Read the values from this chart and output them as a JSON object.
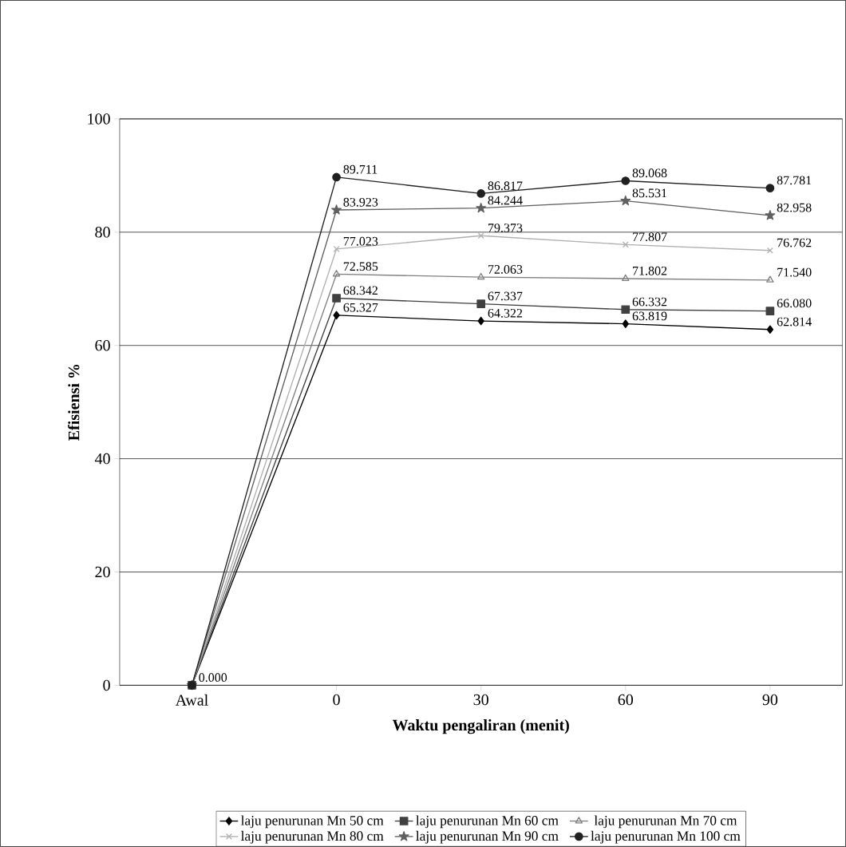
{
  "chart_data": {
    "type": "line",
    "xlabel": "Waktu pengaliran (menit)",
    "ylabel": "Efisiensi %",
    "categories": [
      "Awal",
      "0",
      "30",
      "60",
      "90"
    ],
    "ylim": [
      0,
      100
    ],
    "yticks": [
      0,
      20,
      40,
      60,
      80,
      100
    ],
    "grid": "y",
    "legend": "bottom",
    "series": [
      {
        "name": "laju penurunan Mn 50 cm",
        "color": "#000000",
        "marker": "diamond",
        "values": [
          0,
          65.327,
          64.322,
          63.819,
          62.814
        ],
        "value_labels": [
          null,
          "65.327",
          "64.322",
          "63.819",
          "62.814"
        ]
      },
      {
        "name": "laju penurunan Mn 60 cm",
        "color": "#404040",
        "marker": "square",
        "values": [
          0,
          68.342,
          67.337,
          66.332,
          66.08
        ],
        "value_labels": [
          "0.000",
          "68.342",
          "67.337",
          "66.332",
          "66.080"
        ]
      },
      {
        "name": "laju penurunan Mn 70 cm",
        "color": "#808080",
        "marker": "triangle",
        "values": [
          0,
          72.585,
          72.063,
          71.802,
          71.54
        ],
        "value_labels": [
          null,
          "72.585",
          "72.063",
          "71.802",
          "71.540"
        ]
      },
      {
        "name": "laju penurunan Mn 80 cm",
        "color": "#b0b0b0",
        "marker": "cross",
        "values": [
          0,
          77.023,
          79.373,
          77.807,
          76.762
        ],
        "value_labels": [
          null,
          "77.023",
          "79.373",
          "77.807",
          "76.762"
        ]
      },
      {
        "name": "laju penurunan Mn 90 cm",
        "color": "#606060",
        "marker": "star",
        "values": [
          0,
          83.923,
          84.244,
          85.531,
          82.958
        ],
        "value_labels": [
          null,
          "83.923",
          "84.244",
          "85.531",
          "82.958"
        ]
      },
      {
        "name": "laju penurunan Mn 100 cm",
        "color": "#202020",
        "marker": "circle",
        "values": [
          0,
          89.711,
          86.817,
          89.068,
          87.781
        ],
        "value_labels": [
          null,
          "89.711",
          "86.817",
          "89.068",
          "87.781"
        ]
      }
    ]
  }
}
